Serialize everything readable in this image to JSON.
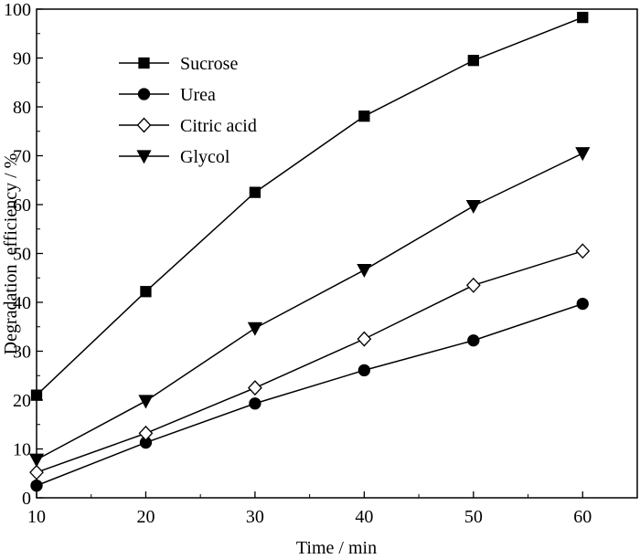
{
  "chart_data": {
    "type": "line",
    "xlabel": "Time / min",
    "ylabel": "Degradation  efficiency / %",
    "xlim": [
      10,
      65
    ],
    "ylim": [
      0,
      100
    ],
    "xticks": [
      10,
      20,
      30,
      40,
      50,
      60
    ],
    "yticks": [
      0,
      10,
      20,
      30,
      40,
      50,
      60,
      70,
      80,
      90,
      100
    ],
    "grid": false,
    "legend_position": "top-left",
    "x": [
      10,
      20,
      30,
      40,
      50,
      60
    ],
    "series": [
      {
        "name": "Sucrose",
        "marker": "filled-square",
        "values": [
          21.0,
          42.2,
          62.5,
          78.1,
          89.5,
          98.3
        ]
      },
      {
        "name": "Urea",
        "marker": "filled-circle",
        "values": [
          2.5,
          11.3,
          19.3,
          26.1,
          32.2,
          39.7
        ]
      },
      {
        "name": "Citric acid",
        "marker": "open-diamond",
        "values": [
          5.2,
          13.2,
          22.5,
          32.5,
          43.5,
          50.5
        ]
      },
      {
        "name": "Glycol",
        "marker": "filled-triangle-down",
        "values": [
          7.8,
          19.8,
          34.7,
          46.6,
          59.7,
          70.5
        ]
      }
    ],
    "colors": {
      "line": "#000000",
      "marker_fill": "#000000",
      "open_marker_fill": "#ffffff"
    }
  }
}
